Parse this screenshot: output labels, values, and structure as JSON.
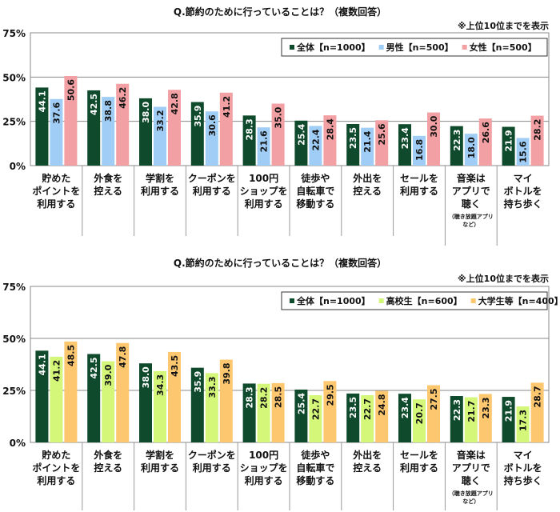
{
  "chart_data": [
    {
      "type": "bar",
      "title": "Q.節約のために行っていることは？（複数回答）",
      "note": "※上位10位までを表示",
      "categories": [
        "貯めた\nポイントを\n利用する",
        "外食を\n控える",
        "学割を\n利用する",
        "クーポンを\n利用する",
        "100円\nショップを\n利用する",
        "徒歩や\n自転車で\n移動する",
        "外出を\n控える",
        "セールを\n利用する",
        "音楽は\nアプリで\n聴く",
        "マイ\nボトルを\n持ち歩く"
      ],
      "category_subnotes": {
        "8": "（聴き放題アプリ\nなど）"
      },
      "yticks": [
        "0%",
        "25%",
        "50%",
        "75%"
      ],
      "ylim": [
        0,
        75
      ],
      "grid": true,
      "legend": "top-right",
      "series": [
        {
          "name": "全体【n=1000】",
          "color": "#0f4a2c",
          "label_color": "#ffffff",
          "values": [
            44.1,
            42.5,
            38.0,
            35.9,
            28.3,
            25.4,
            23.5,
            23.4,
            22.3,
            21.9
          ]
        },
        {
          "name": "男性【n=500】",
          "color": "#9fcdf5",
          "label_color": "#111111",
          "values": [
            37.6,
            38.8,
            33.2,
            30.6,
            21.6,
            22.4,
            21.4,
            16.8,
            18.0,
            15.6
          ]
        },
        {
          "name": "女性【n=500】",
          "color": "#f2a0a3",
          "label_color": "#111111",
          "values": [
            50.6,
            46.2,
            42.8,
            41.2,
            35.0,
            28.4,
            25.6,
            30.0,
            26.6,
            28.2
          ]
        }
      ]
    },
    {
      "type": "bar",
      "title": "Q.節約のために行っていることは？（複数回答）",
      "note": "※上位10位までを表示",
      "categories": [
        "貯めた\nポイントを\n利用する",
        "外食を\n控える",
        "学割を\n利用する",
        "クーポンを\n利用する",
        "100円\nショップを\n利用する",
        "徒歩や\n自転車で\n移動する",
        "外出を\n控える",
        "セールを\n利用する",
        "音楽は\nアプリで\n聴く",
        "マイ\nボトルを\n持ち歩く"
      ],
      "category_subnotes": {
        "8": "（聴き放題アプリ\nなど）"
      },
      "yticks": [
        "0%",
        "25%",
        "50%",
        "75%"
      ],
      "ylim": [
        0,
        75
      ],
      "grid": true,
      "legend": "top-right",
      "series": [
        {
          "name": "全体【n=1000】",
          "color": "#0f4a2c",
          "label_color": "#ffffff",
          "values": [
            44.1,
            42.5,
            38.0,
            35.9,
            28.3,
            25.4,
            23.5,
            23.4,
            22.3,
            21.9
          ]
        },
        {
          "name": "高校生【n=600】",
          "color": "#d4f77a",
          "label_color": "#111111",
          "values": [
            41.2,
            39.0,
            34.3,
            33.3,
            28.2,
            22.7,
            22.7,
            20.7,
            21.7,
            17.3
          ]
        },
        {
          "name": "大学生等【n=400】",
          "color": "#fcc76f",
          "label_color": "#111111",
          "values": [
            48.5,
            47.8,
            43.5,
            39.8,
            28.5,
            29.5,
            24.8,
            27.5,
            23.3,
            28.7
          ]
        }
      ]
    }
  ]
}
